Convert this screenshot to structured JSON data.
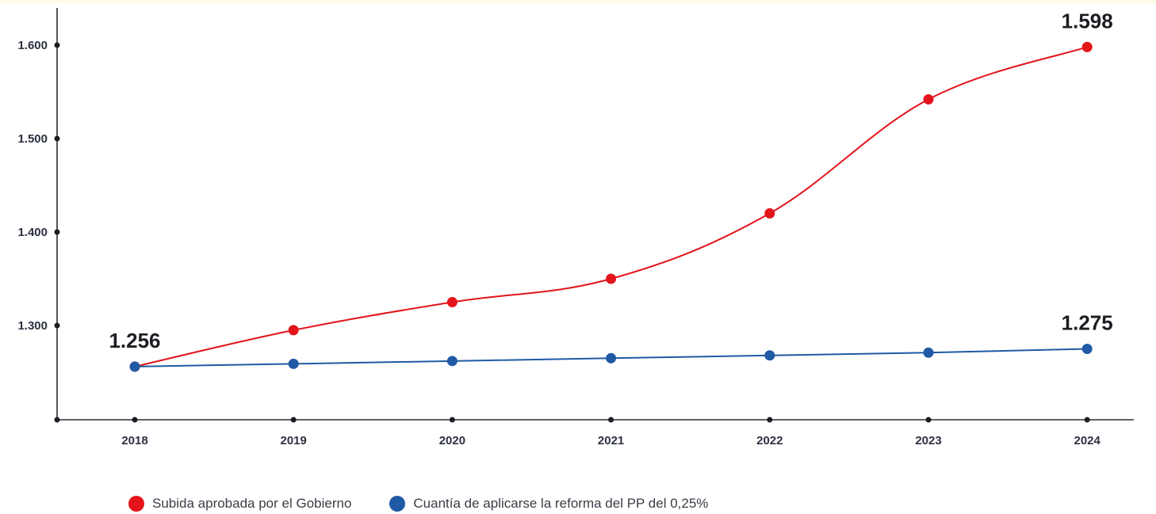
{
  "chart_data": {
    "type": "line",
    "categories": [
      "2018",
      "2019",
      "2020",
      "2021",
      "2022",
      "2023",
      "2024"
    ],
    "y_ticks": [
      "1.300",
      "1.400",
      "1.500",
      "1.600"
    ],
    "ylim": [
      1200,
      1640
    ],
    "grid": false,
    "legend_position": "bottom-left",
    "series": [
      {
        "name": "Subida aprobada por el Gobierno",
        "color": "#e3141b",
        "values": [
          1256,
          1295,
          1325,
          1350,
          1420,
          1542,
          1598
        ],
        "labels": [
          {
            "index": 6,
            "text": "1.598"
          }
        ]
      },
      {
        "name": "Cuantía de aplicarse la reforma del PP del 0,25%",
        "color": "#1f5aa5",
        "values": [
          1256,
          1259,
          1262,
          1265,
          1268,
          1271,
          1275
        ],
        "labels": [
          {
            "index": 0,
            "text": "1.256"
          },
          {
            "index": 6,
            "text": "1.275"
          }
        ]
      }
    ]
  }
}
